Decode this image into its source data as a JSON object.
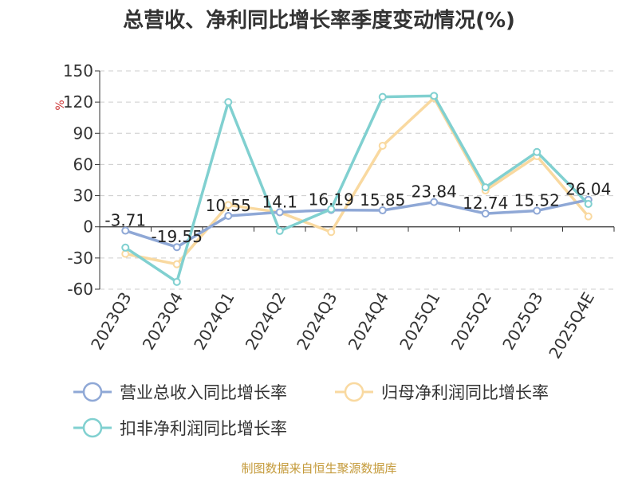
{
  "chart_data": {
    "type": "line",
    "title": "总营收、净利同比增长率季度变动情况(%)",
    "ylabel": "%",
    "ylim": [
      -60,
      150
    ],
    "yticks": [
      -60,
      -30,
      0,
      30,
      60,
      90,
      120,
      150
    ],
    "categories": [
      "2023Q3",
      "2023Q4",
      "2024Q1",
      "2024Q2",
      "2024Q3",
      "2024Q4",
      "2025Q1",
      "2025Q2",
      "2025Q3",
      "2025Q4E"
    ],
    "grid": true,
    "legend_position": "bottom",
    "series": [
      {
        "name": "营业总收入同比增长率",
        "color": "#8fa8d6",
        "values": [
          -3.71,
          -19.55,
          10.55,
          14.1,
          16.19,
          15.85,
          23.84,
          12.74,
          15.52,
          26.04
        ],
        "labels": [
          "-3.71",
          "-19.55",
          "10.55",
          "14.1",
          "16.19",
          "15.85",
          "23.84",
          "12.74",
          "15.52",
          "26.04"
        ]
      },
      {
        "name": "归母净利润同比增长率",
        "color": "#f9d9a0",
        "values": [
          -26,
          -36,
          21,
          14,
          -5,
          78,
          124,
          35,
          68,
          10
        ]
      },
      {
        "name": "扣非净利润同比增长率",
        "color": "#80d0d0",
        "values": [
          -20,
          -53,
          120,
          -4,
          17,
          125,
          126,
          38,
          72,
          22
        ]
      }
    ]
  },
  "source": "制图数据来自恒生聚源数据库"
}
